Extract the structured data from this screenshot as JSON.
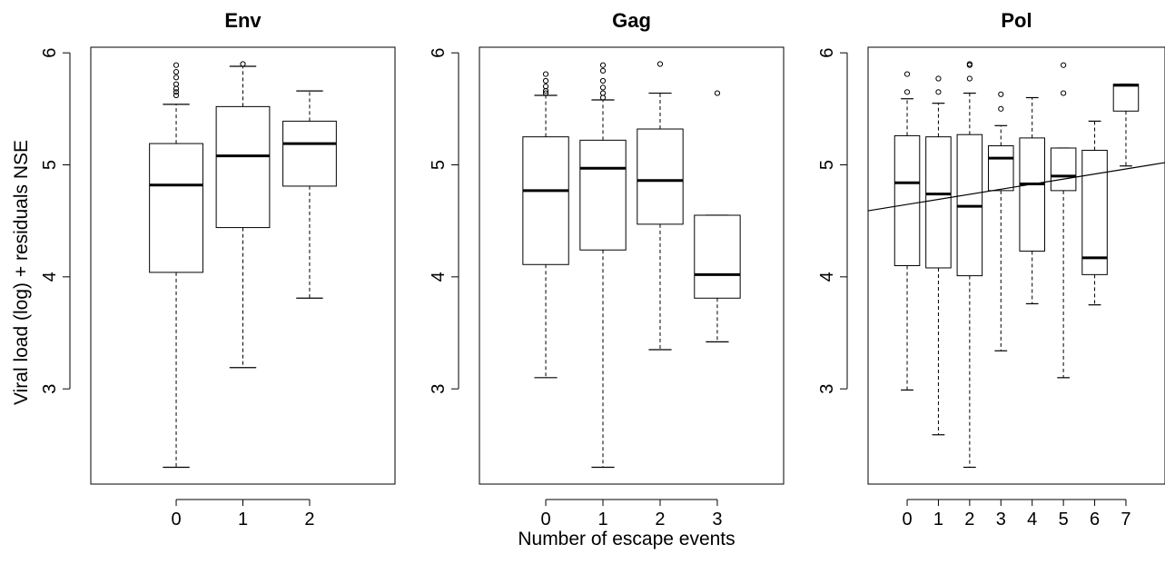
{
  "figure": {
    "ylabel": "Viral load (log) + residuals NSE",
    "xlabel": "Number of escape events"
  },
  "chart_data": [
    {
      "type": "box",
      "title": "Env",
      "categories": [
        "0",
        "1",
        "2"
      ],
      "ylim": [
        2.15,
        6.05
      ],
      "yticks": [
        3,
        4,
        5,
        6
      ],
      "boxes": [
        {
          "category": "0",
          "whisker_low": 2.3,
          "q1": 4.04,
          "median": 4.82,
          "q3": 5.19,
          "whisker_high": 5.54,
          "outliers": [
            5.62,
            5.65,
            5.68,
            5.72,
            5.78,
            5.83,
            5.89
          ]
        },
        {
          "category": "1",
          "whisker_low": 3.19,
          "q1": 4.44,
          "median": 5.08,
          "q3": 5.52,
          "whisker_high": 5.88,
          "outliers": [
            5.9
          ]
        },
        {
          "category": "2",
          "whisker_low": 3.81,
          "q1": 4.81,
          "median": 5.19,
          "q3": 5.39,
          "whisker_high": 5.66,
          "outliers": []
        }
      ]
    },
    {
      "type": "box",
      "title": "Gag",
      "categories": [
        "0",
        "1",
        "2",
        "3"
      ],
      "ylim": [
        2.15,
        6.05
      ],
      "yticks": [
        3,
        4,
        5,
        6
      ],
      "boxes": [
        {
          "category": "0",
          "whisker_low": 3.1,
          "q1": 4.11,
          "median": 4.77,
          "q3": 5.25,
          "whisker_high": 5.62,
          "outliers": [
            5.64,
            5.66,
            5.7,
            5.75,
            5.81
          ]
        },
        {
          "category": "1",
          "whisker_low": 2.3,
          "q1": 4.24,
          "median": 4.97,
          "q3": 5.22,
          "whisker_high": 5.58,
          "outliers": [
            5.6,
            5.64,
            5.69,
            5.75,
            5.84,
            5.89
          ]
        },
        {
          "category": "2",
          "whisker_low": 3.35,
          "q1": 4.47,
          "median": 4.86,
          "q3": 5.32,
          "whisker_high": 5.64,
          "outliers": [
            5.9
          ]
        },
        {
          "category": "3",
          "whisker_low": 3.42,
          "q1": 3.81,
          "median": 4.02,
          "q3": 4.55,
          "whisker_high": 4.55,
          "outliers": [
            5.64
          ]
        }
      ]
    },
    {
      "type": "box",
      "title": "Pol",
      "categories": [
        "0",
        "1",
        "2",
        "3",
        "4",
        "5",
        "6",
        "7"
      ],
      "ylim": [
        2.15,
        6.05
      ],
      "yticks": [
        3,
        4,
        5,
        6
      ],
      "trend_line": {
        "y_at_left": 4.59,
        "y_at_right": 5.02
      },
      "boxes": [
        {
          "category": "0",
          "whisker_low": 2.99,
          "q1": 4.1,
          "median": 4.84,
          "q3": 5.26,
          "whisker_high": 5.59,
          "outliers": [
            5.65,
            5.81
          ]
        },
        {
          "category": "1",
          "whisker_low": 2.59,
          "q1": 4.08,
          "median": 4.74,
          "q3": 5.25,
          "whisker_high": 5.55,
          "outliers": [
            5.65,
            5.77
          ]
        },
        {
          "category": "2",
          "whisker_low": 2.3,
          "q1": 4.01,
          "median": 4.63,
          "q3": 5.27,
          "whisker_high": 5.64,
          "outliers": [
            5.77,
            5.89,
            5.9
          ]
        },
        {
          "category": "3",
          "whisker_low": 3.34,
          "q1": 4.77,
          "median": 5.06,
          "q3": 5.17,
          "whisker_high": 5.35,
          "outliers": [
            5.5,
            5.63
          ]
        },
        {
          "category": "4",
          "whisker_low": 3.76,
          "q1": 4.23,
          "median": 4.83,
          "q3": 5.24,
          "whisker_high": 5.6,
          "outliers": []
        },
        {
          "category": "5",
          "whisker_low": 3.1,
          "q1": 4.77,
          "median": 4.9,
          "q3": 5.15,
          "whisker_high": 5.15,
          "outliers": [
            5.64,
            5.89
          ]
        },
        {
          "category": "6",
          "whisker_low": 3.75,
          "q1": 4.02,
          "median": 4.17,
          "q3": 5.13,
          "whisker_high": 5.39,
          "outliers": []
        },
        {
          "category": "7",
          "whisker_low": 4.99,
          "q1": 5.48,
          "median": 5.71,
          "q3": 5.72,
          "whisker_high": 5.72,
          "outliers": []
        }
      ]
    }
  ]
}
